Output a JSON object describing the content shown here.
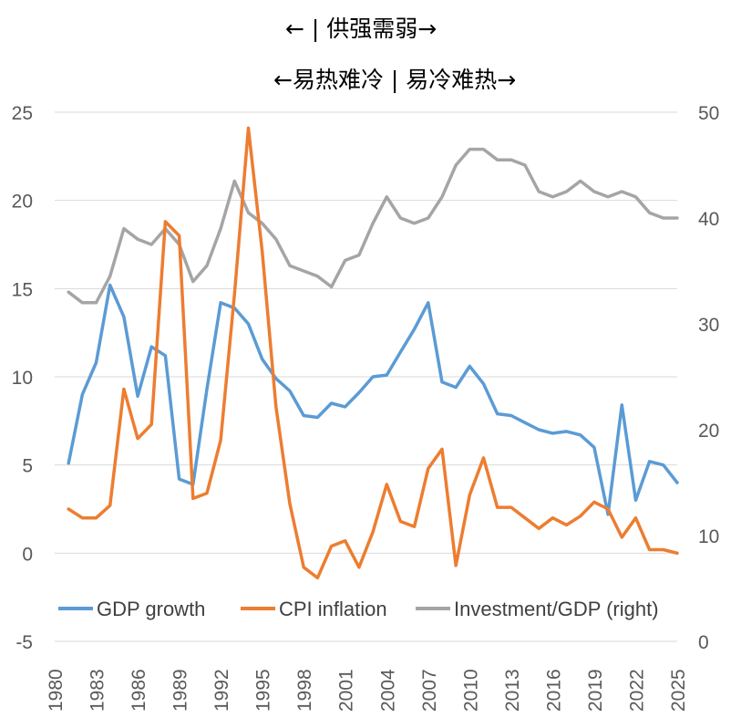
{
  "annotations": {
    "line1": "← | 供强需弱→",
    "line2": "←易热难冷 | 易冷难热→"
  },
  "chart_data": {
    "type": "line",
    "x": [
      1981,
      1982,
      1983,
      1984,
      1985,
      1986,
      1987,
      1988,
      1989,
      1990,
      1991,
      1992,
      1993,
      1994,
      1995,
      1996,
      1997,
      1998,
      1999,
      2000,
      2001,
      2002,
      2003,
      2004,
      2005,
      2006,
      2007,
      2008,
      2009,
      2010,
      2011,
      2012,
      2013,
      2014,
      2015,
      2016,
      2017,
      2018,
      2019,
      2020,
      2021,
      2022,
      2023,
      2024,
      2025
    ],
    "x_ticks": [
      "1980",
      "1983",
      "1986",
      "1989",
      "1992",
      "1995",
      "1998",
      "2001",
      "2004",
      "2007",
      "2010",
      "2013",
      "2016",
      "2019",
      "2022",
      "2025"
    ],
    "left_axis": {
      "ylim": [
        -5,
        25
      ],
      "ticks": [
        "-5",
        "0",
        "5",
        "10",
        "15",
        "20",
        "25"
      ]
    },
    "right_axis": {
      "ylim": [
        0,
        50
      ],
      "ticks": [
        "0",
        "10",
        "20",
        "30",
        "40",
        "50"
      ]
    },
    "grid": "horizontal",
    "legend_position": "bottom",
    "series": [
      {
        "name": "GDP growth",
        "axis": "left",
        "color": "#5B9BD5",
        "values": [
          5.1,
          9.0,
          10.8,
          15.2,
          13.4,
          8.9,
          11.7,
          11.2,
          4.2,
          3.9,
          9.3,
          14.2,
          13.9,
          13.0,
          11.0,
          9.9,
          9.2,
          7.8,
          7.7,
          8.5,
          8.3,
          9.1,
          10.0,
          10.1,
          11.4,
          12.7,
          14.2,
          9.7,
          9.4,
          10.6,
          9.6,
          7.9,
          7.8,
          7.4,
          7.0,
          6.8,
          6.9,
          6.7,
          6.0,
          2.2,
          8.4,
          3.0,
          5.2,
          5.0,
          4.0
        ]
      },
      {
        "name": "CPI inflation",
        "axis": "left",
        "color": "#ED7D31",
        "values": [
          2.5,
          2.0,
          2.0,
          2.7,
          9.3,
          6.5,
          7.3,
          18.8,
          18.0,
          3.1,
          3.4,
          6.4,
          14.7,
          24.1,
          17.1,
          8.3,
          2.8,
          -0.8,
          -1.4,
          0.4,
          0.7,
          -0.8,
          1.2,
          3.9,
          1.8,
          1.5,
          4.8,
          5.9,
          -0.7,
          3.3,
          5.4,
          2.6,
          2.6,
          2.0,
          1.4,
          2.0,
          1.6,
          2.1,
          2.9,
          2.5,
          0.9,
          2.0,
          0.2,
          0.2,
          0.0
        ]
      },
      {
        "name": "Investment/GDP (right)",
        "axis": "right",
        "color": "#A5A5A5",
        "values": [
          33.0,
          32.0,
          32.0,
          34.5,
          39.0,
          38.0,
          37.5,
          39.0,
          37.5,
          34.0,
          35.5,
          39.0,
          43.5,
          40.5,
          39.5,
          38.0,
          35.5,
          35.0,
          34.5,
          33.5,
          36.0,
          36.5,
          39.5,
          42.0,
          40.0,
          39.5,
          40.0,
          42.0,
          45.0,
          46.5,
          46.5,
          45.5,
          45.5,
          45.0,
          42.5,
          42.0,
          42.5,
          43.5,
          42.5,
          42.0,
          42.5,
          42.0,
          40.5,
          40.0,
          40.0
        ]
      }
    ]
  }
}
